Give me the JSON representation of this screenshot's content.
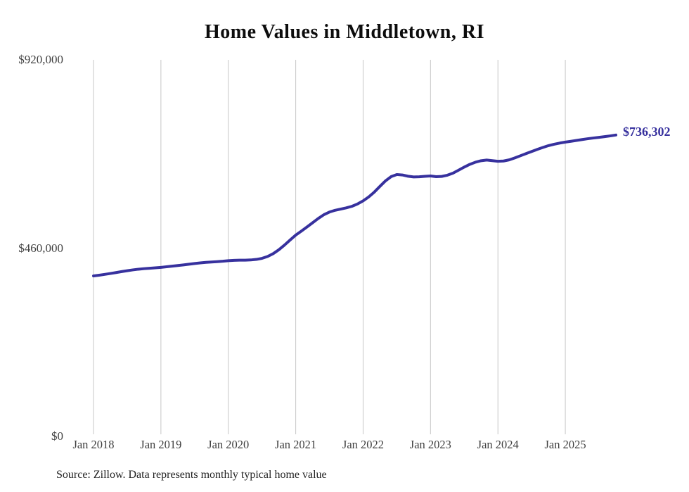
{
  "page": {
    "background_color": "#ffffff"
  },
  "header": {
    "title": "Home Values in Middletown, RI"
  },
  "chart_data": {
    "type": "line",
    "title": "Home Values in Middletown, RI",
    "xlabel": "",
    "ylabel": "",
    "x_frequency": "monthly",
    "x_start": "Jan 2018",
    "x_end": "Oct 2025",
    "x_tick_labels": [
      "Jan 2018",
      "Jan 2019",
      "Jan 2020",
      "Jan 2021",
      "Jan 2022",
      "Jan 2023",
      "Jan 2024",
      "Jan 2025"
    ],
    "y_ticks": [
      {
        "label": "$0",
        "value": 0
      },
      {
        "label": "$460,000",
        "value": 460000
      },
      {
        "label": "$920,000",
        "value": 920000
      }
    ],
    "ylim": [
      0,
      920000
    ],
    "grid": "vertical-only",
    "legend": "none",
    "line_color": "#37319e",
    "gridline_color": "#c7c7c7",
    "tick_label_color": "#3f3f3f",
    "end_label": "$736,302",
    "final_value": 736302,
    "series": [
      {
        "name": "Typical home value",
        "values": [
          392000,
          393800,
          395800,
          398000,
          400300,
          402600,
          404800,
          406800,
          408500,
          409800,
          410800,
          411800,
          413000,
          414400,
          415900,
          417400,
          419000,
          420700,
          422300,
          423800,
          425100,
          426100,
          426900,
          427900,
          429200,
          430100,
          430500,
          430600,
          431100,
          432400,
          435000,
          439600,
          446600,
          456000,
          467400,
          479800,
          491800,
          501500,
          511500,
          521900,
          532300,
          541500,
          548100,
          552400,
          555400,
          558300,
          562100,
          567800,
          575500,
          585100,
          597000,
          611000,
          624500,
          634700,
          639800,
          638700,
          635600,
          633900,
          634300,
          635400,
          636200,
          634600,
          635200,
          638100,
          643200,
          650400,
          657900,
          664700,
          669900,
          673500,
          675100,
          673600,
          672100,
          672800,
          675600,
          680300,
          685600,
          690900,
          696100,
          701100,
          705900,
          710400,
          713800,
          716600,
          719000,
          721000,
          723100,
          725300,
          727300,
          729000,
          730600,
          732300,
          734200,
          736302
        ]
      }
    ]
  },
  "footer": {
    "source_note": "Source: Zillow. Data represents monthly typical home value"
  }
}
